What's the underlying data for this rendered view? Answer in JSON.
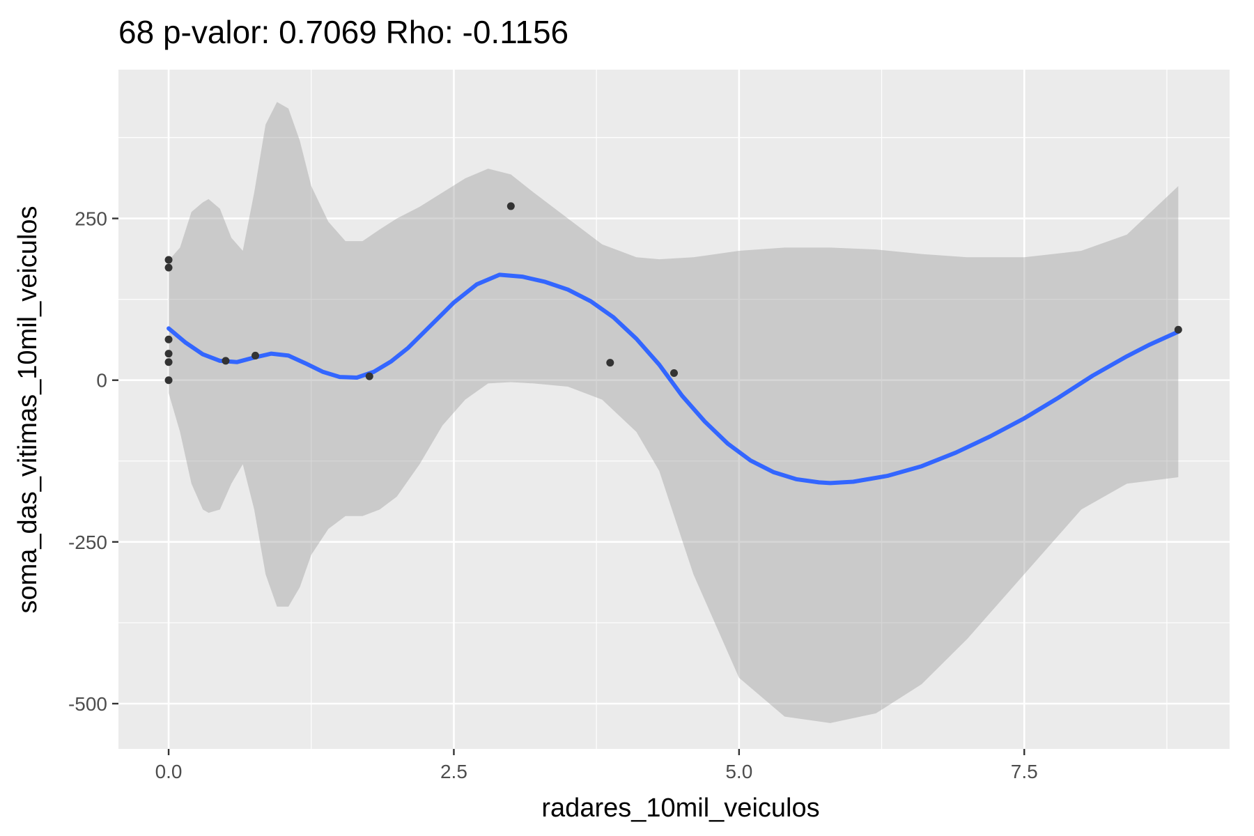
{
  "chart_data": {
    "type": "scatter",
    "title": "68 p-valor: 0.7069 Rho: -0.1156",
    "xlabel": "radares_10mil_veiculos",
    "ylabel": "soma_das_vitimas_10mil_veiculos",
    "xlim": [
      -0.44,
      9.3
    ],
    "ylim": [
      -570,
      480
    ],
    "x_ticks": [
      0.0,
      2.5,
      5.0,
      7.5
    ],
    "x_tick_labels": [
      "0.0",
      "2.5",
      "5.0",
      "7.5"
    ],
    "y_ticks": [
      250,
      0,
      -250,
      -500
    ],
    "y_tick_labels": [
      "250",
      "0",
      "-250",
      "-500"
    ],
    "grid": true,
    "colors": {
      "panel_bg": "#ebebeb",
      "grid": "#ffffff",
      "points": "#333333",
      "smooth_line": "#3366ff",
      "ribbon": "#999999"
    },
    "points": [
      {
        "x": 0.0,
        "y": 186
      },
      {
        "x": 0.0,
        "y": 174
      },
      {
        "x": 0.0,
        "y": 63
      },
      {
        "x": 0.0,
        "y": 41
      },
      {
        "x": 0.0,
        "y": 28
      },
      {
        "x": 0.0,
        "y": 0
      },
      {
        "x": 0.5,
        "y": 30
      },
      {
        "x": 0.76,
        "y": 38
      },
      {
        "x": 1.76,
        "y": 6
      },
      {
        "x": 3.0,
        "y": 269
      },
      {
        "x": 3.87,
        "y": 27
      },
      {
        "x": 4.43,
        "y": 11
      },
      {
        "x": 8.85,
        "y": 78
      }
    ],
    "smooth": {
      "x": [
        0.0,
        0.15,
        0.3,
        0.45,
        0.6,
        0.75,
        0.9,
        1.05,
        1.2,
        1.35,
        1.5,
        1.65,
        1.8,
        1.95,
        2.1,
        2.3,
        2.5,
        2.7,
        2.9,
        3.1,
        3.3,
        3.5,
        3.7,
        3.9,
        4.1,
        4.3,
        4.5,
        4.7,
        4.9,
        5.1,
        5.3,
        5.5,
        5.7,
        5.8,
        6.0,
        6.3,
        6.6,
        6.9,
        7.2,
        7.5,
        7.8,
        8.1,
        8.4,
        8.6,
        8.85
      ],
      "y": [
        80,
        58,
        40,
        30,
        28,
        35,
        41,
        38,
        26,
        13,
        5,
        4,
        13,
        29,
        50,
        85,
        120,
        148,
        163,
        160,
        152,
        140,
        122,
        97,
        64,
        24,
        -24,
        -64,
        -98,
        -124,
        -142,
        -153,
        -158,
        -159,
        -157,
        -148,
        -133,
        -112,
        -87,
        -59,
        -27,
        7,
        37,
        55,
        75
      ]
    },
    "ribbon": {
      "x": [
        0.0,
        0.1,
        0.2,
        0.3,
        0.35,
        0.45,
        0.55,
        0.65,
        0.75,
        0.85,
        0.95,
        1.05,
        1.15,
        1.25,
        1.4,
        1.55,
        1.7,
        1.85,
        2.0,
        2.2,
        2.4,
        2.6,
        2.8,
        3.0,
        3.2,
        3.5,
        3.8,
        4.1,
        4.3,
        4.6,
        5.0,
        5.4,
        5.8,
        6.2,
        6.6,
        7.0,
        7.5,
        8.0,
        8.4,
        8.85
      ],
      "upper": [
        185,
        205,
        260,
        275,
        280,
        265,
        220,
        200,
        290,
        395,
        430,
        420,
        370,
        300,
        245,
        215,
        215,
        233,
        250,
        268,
        290,
        312,
        327,
        318,
        290,
        250,
        210,
        190,
        187,
        190,
        200,
        205,
        205,
        202,
        195,
        190,
        190,
        200,
        225,
        300
      ],
      "lower": [
        -20,
        -80,
        -160,
        -200,
        -205,
        -200,
        -160,
        -130,
        -200,
        -300,
        -350,
        -350,
        -320,
        -270,
        -230,
        -210,
        -210,
        -200,
        -180,
        -130,
        -70,
        -30,
        -5,
        -3,
        -5,
        -10,
        -30,
        -80,
        -140,
        -300,
        -460,
        -520,
        -530,
        -515,
        -470,
        -400,
        -300,
        -200,
        -160,
        -150
      ]
    }
  }
}
